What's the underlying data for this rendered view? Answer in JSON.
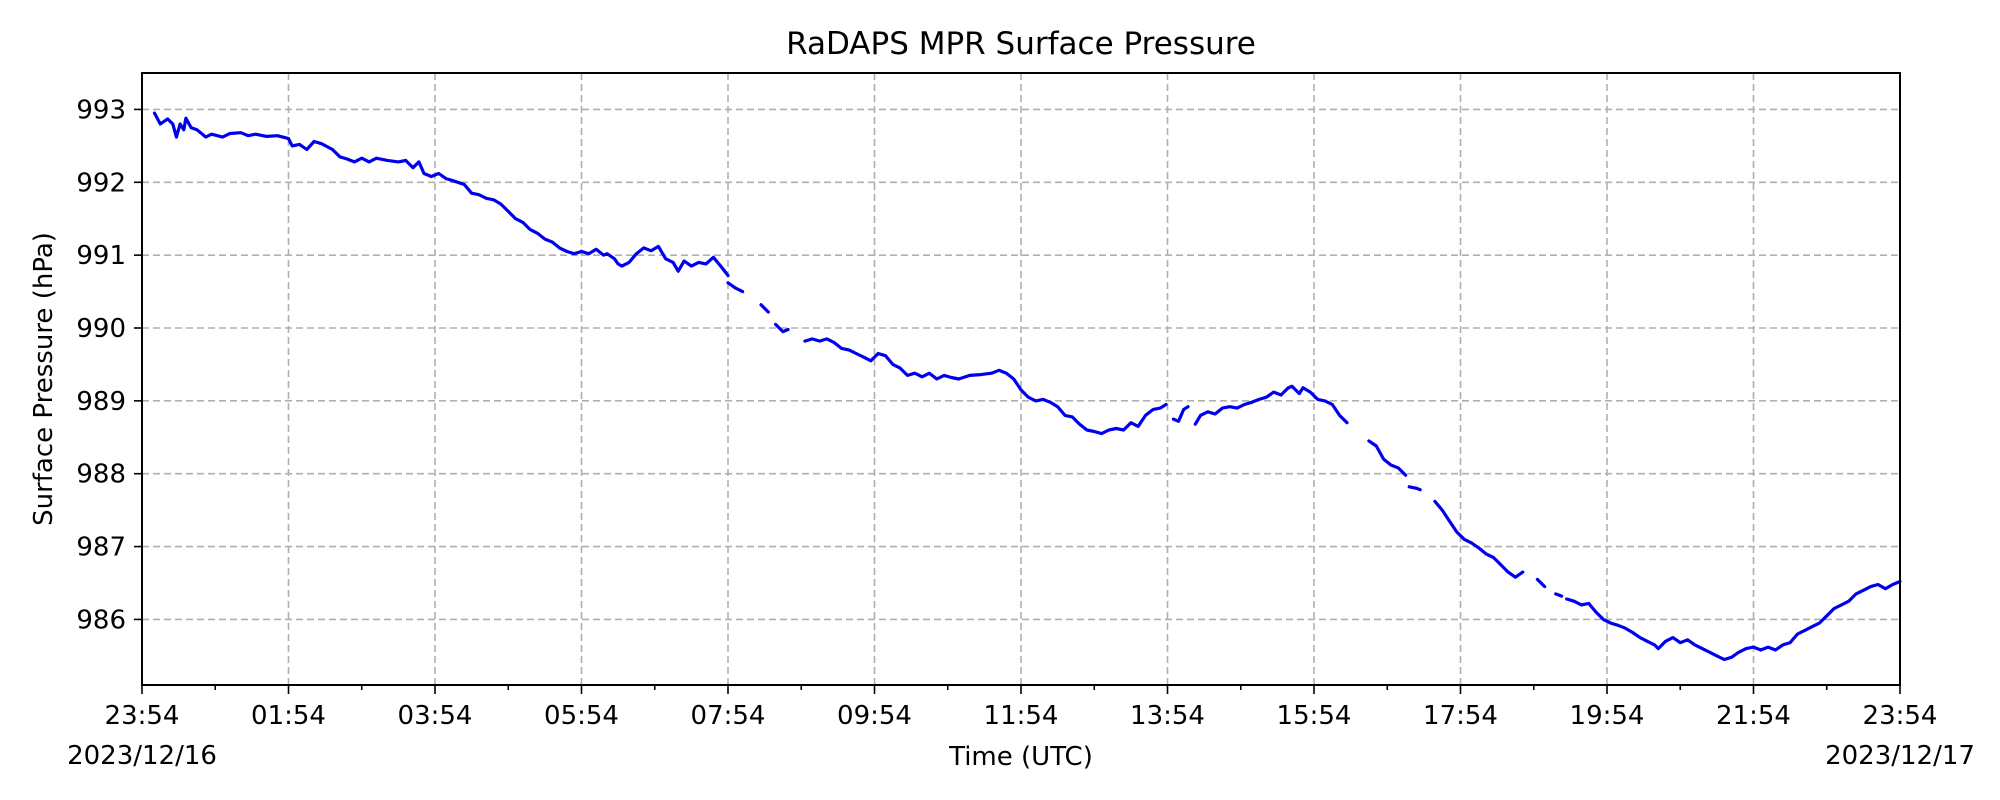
{
  "chart_data": {
    "type": "line",
    "title": "RaDAPS MPR Surface Pressure",
    "xlabel": "Time (UTC)",
    "ylabel": "Surface Pressure (hPa)",
    "x_units": "hours since 2023/12/16 23:54 UTC",
    "xlim": [
      0,
      24
    ],
    "ylim": [
      985.1,
      993.5
    ],
    "x_ticks": [
      {
        "x": 0,
        "label": "23:54"
      },
      {
        "x": 2,
        "label": "01:54"
      },
      {
        "x": 4,
        "label": "03:54"
      },
      {
        "x": 6,
        "label": "05:54"
      },
      {
        "x": 8,
        "label": "07:54"
      },
      {
        "x": 10,
        "label": "09:54"
      },
      {
        "x": 12,
        "label": "11:54"
      },
      {
        "x": 14,
        "label": "13:54"
      },
      {
        "x": 16,
        "label": "15:54"
      },
      {
        "x": 18,
        "label": "17:54"
      },
      {
        "x": 20,
        "label": "19:54"
      },
      {
        "x": 22,
        "label": "21:54"
      },
      {
        "x": 24,
        "label": "23:54"
      }
    ],
    "x_minor_ticks": [
      1,
      3,
      5,
      7,
      9,
      11,
      13,
      15,
      17,
      19,
      21,
      23
    ],
    "date_labels": [
      {
        "x": 0,
        "label": "2023/12/16"
      },
      {
        "x": 24,
        "label": "2023/12/17"
      }
    ],
    "y_ticks": [
      986,
      987,
      988,
      989,
      990,
      991,
      992,
      993
    ],
    "grid": true,
    "color": "#0000ee",
    "series": [
      {
        "segments": [
          [
            [
              0.17,
              992.95
            ],
            [
              0.25,
              992.8
            ],
            [
              0.35,
              992.87
            ],
            [
              0.42,
              992.8
            ],
            [
              0.47,
              992.62
            ],
            [
              0.52,
              992.8
            ],
            [
              0.57,
              992.72
            ],
            [
              0.6,
              992.88
            ],
            [
              0.67,
              992.75
            ],
            [
              0.75,
              992.72
            ],
            [
              0.8,
              992.68
            ],
            [
              0.87,
              992.62
            ],
            [
              0.95,
              992.66
            ],
            [
              1.1,
              992.62
            ],
            [
              1.2,
              992.67
            ],
            [
              1.35,
              992.68
            ],
            [
              1.45,
              992.64
            ],
            [
              1.55,
              992.66
            ],
            [
              1.7,
              992.63
            ],
            [
              1.85,
              992.64
            ],
            [
              2.0,
              992.6
            ],
            [
              2.05,
              992.5
            ],
            [
              2.15,
              992.52
            ],
            [
              2.25,
              992.45
            ],
            [
              2.35,
              992.56
            ],
            [
              2.45,
              992.53
            ],
            [
              2.6,
              992.45
            ],
            [
              2.7,
              992.35
            ],
            [
              2.8,
              992.32
            ],
            [
              2.9,
              992.28
            ],
            [
              3.0,
              992.33
            ],
            [
              3.1,
              992.28
            ],
            [
              3.2,
              992.33
            ],
            [
              3.35,
              992.3
            ],
            [
              3.5,
              992.28
            ],
            [
              3.6,
              992.3
            ],
            [
              3.7,
              992.2
            ],
            [
              3.78,
              992.28
            ],
            [
              3.85,
              992.12
            ],
            [
              3.95,
              992.08
            ],
            [
              4.05,
              992.12
            ],
            [
              4.15,
              992.05
            ],
            [
              4.25,
              992.02
            ],
            [
              4.4,
              991.97
            ],
            [
              4.5,
              991.85
            ],
            [
              4.6,
              991.83
            ],
            [
              4.7,
              991.78
            ],
            [
              4.8,
              991.76
            ],
            [
              4.9,
              991.7
            ],
            [
              5.0,
              991.6
            ],
            [
              5.1,
              991.5
            ],
            [
              5.2,
              991.45
            ],
            [
              5.3,
              991.35
            ],
            [
              5.4,
              991.3
            ],
            [
              5.5,
              991.22
            ],
            [
              5.6,
              991.18
            ],
            [
              5.7,
              991.1
            ],
            [
              5.8,
              991.05
            ],
            [
              5.9,
              991.02
            ],
            [
              6.0,
              991.05
            ],
            [
              6.1,
              991.02
            ],
            [
              6.2,
              991.08
            ],
            [
              6.3,
              991.0
            ],
            [
              6.35,
              991.02
            ],
            [
              6.45,
              990.95
            ],
            [
              6.5,
              990.88
            ],
            [
              6.55,
              990.85
            ],
            [
              6.65,
              990.9
            ],
            [
              6.75,
              991.02
            ],
            [
              6.85,
              991.1
            ],
            [
              6.95,
              991.06
            ],
            [
              7.05,
              991.12
            ],
            [
              7.15,
              990.95
            ],
            [
              7.25,
              990.9
            ],
            [
              7.32,
              990.78
            ],
            [
              7.4,
              990.92
            ],
            [
              7.5,
              990.85
            ],
            [
              7.6,
              990.9
            ],
            [
              7.7,
              990.88
            ],
            [
              7.8,
              990.97
            ],
            [
              7.9,
              990.85
            ],
            [
              8.0,
              990.72
            ]
          ],
          [
            [
              8.0,
              990.62
            ],
            [
              8.1,
              990.55
            ],
            [
              8.2,
              990.5
            ]
          ],
          [
            [
              8.45,
              990.32
            ],
            [
              8.55,
              990.22
            ]
          ],
          [
            [
              8.65,
              990.05
            ],
            [
              8.75,
              989.95
            ],
            [
              8.82,
              989.98
            ]
          ],
          [
            [
              9.05,
              989.82
            ],
            [
              9.15,
              989.85
            ],
            [
              9.25,
              989.82
            ],
            [
              9.35,
              989.85
            ],
            [
              9.45,
              989.8
            ],
            [
              9.55,
              989.72
            ],
            [
              9.65,
              989.7
            ],
            [
              9.75,
              989.65
            ],
            [
              9.85,
              989.6
            ],
            [
              9.95,
              989.55
            ],
            [
              10.05,
              989.65
            ],
            [
              10.15,
              989.62
            ],
            [
              10.25,
              989.5
            ],
            [
              10.35,
              989.45
            ],
            [
              10.45,
              989.35
            ],
            [
              10.55,
              989.38
            ],
            [
              10.65,
              989.33
            ],
            [
              10.75,
              989.38
            ],
            [
              10.85,
              989.3
            ],
            [
              10.95,
              989.35
            ],
            [
              11.05,
              989.32
            ],
            [
              11.15,
              989.3
            ],
            [
              11.3,
              989.35
            ],
            [
              11.45,
              989.36
            ],
            [
              11.6,
              989.38
            ],
            [
              11.7,
              989.42
            ],
            [
              11.8,
              989.38
            ],
            [
              11.9,
              989.3
            ],
            [
              12.0,
              989.15
            ],
            [
              12.1,
              989.05
            ],
            [
              12.2,
              989.0
            ],
            [
              12.3,
              989.02
            ],
            [
              12.4,
              988.98
            ],
            [
              12.5,
              988.92
            ],
            [
              12.6,
              988.8
            ],
            [
              12.7,
              988.78
            ],
            [
              12.8,
              988.68
            ],
            [
              12.9,
              988.6
            ],
            [
              13.0,
              988.58
            ],
            [
              13.1,
              988.55
            ],
            [
              13.2,
              988.6
            ],
            [
              13.3,
              988.62
            ],
            [
              13.4,
              988.6
            ],
            [
              13.5,
              988.7
            ],
            [
              13.6,
              988.65
            ],
            [
              13.7,
              988.8
            ],
            [
              13.8,
              988.88
            ],
            [
              13.9,
              988.9
            ],
            [
              13.98,
              988.95
            ]
          ],
          [
            [
              14.08,
              988.75
            ],
            [
              14.15,
              988.72
            ],
            [
              14.22,
              988.88
            ],
            [
              14.28,
              988.92
            ]
          ],
          [
            [
              14.38,
              988.68
            ],
            [
              14.45,
              988.8
            ],
            [
              14.55,
              988.85
            ],
            [
              14.65,
              988.82
            ],
            [
              14.75,
              988.9
            ],
            [
              14.85,
              988.92
            ],
            [
              14.95,
              988.9
            ],
            [
              15.05,
              988.95
            ],
            [
              15.15,
              988.98
            ],
            [
              15.25,
              989.02
            ],
            [
              15.35,
              989.05
            ],
            [
              15.45,
              989.12
            ],
            [
              15.55,
              989.08
            ],
            [
              15.65,
              989.18
            ],
            [
              15.7,
              989.2
            ],
            [
              15.8,
              989.1
            ],
            [
              15.85,
              989.18
            ],
            [
              15.95,
              989.12
            ],
            [
              16.05,
              989.02
            ],
            [
              16.15,
              989.0
            ],
            [
              16.25,
              988.95
            ],
            [
              16.35,
              988.8
            ],
            [
              16.45,
              988.7
            ]
          ],
          [
            [
              16.75,
              988.45
            ],
            [
              16.85,
              988.38
            ],
            [
              16.95,
              988.2
            ],
            [
              17.05,
              988.12
            ],
            [
              17.15,
              988.08
            ],
            [
              17.25,
              987.98
            ]
          ],
          [
            [
              17.3,
              987.82
            ],
            [
              17.4,
              987.8
            ],
            [
              17.45,
              987.78
            ]
          ],
          [
            [
              17.65,
              987.62
            ],
            [
              17.75,
              987.5
            ],
            [
              17.85,
              987.35
            ],
            [
              17.95,
              987.2
            ],
            [
              18.05,
              987.1
            ],
            [
              18.15,
              987.05
            ],
            [
              18.25,
              986.98
            ],
            [
              18.35,
              986.9
            ],
            [
              18.45,
              986.85
            ],
            [
              18.55,
              986.75
            ],
            [
              18.65,
              986.65
            ],
            [
              18.75,
              986.58
            ],
            [
              18.85,
              986.65
            ]
          ],
          [
            [
              19.05,
              986.55
            ],
            [
              19.15,
              986.45
            ]
          ],
          [
            [
              19.3,
              986.35
            ],
            [
              19.38,
              986.32
            ]
          ],
          [
            [
              19.45,
              986.28
            ],
            [
              19.55,
              986.25
            ],
            [
              19.65,
              986.2
            ],
            [
              19.75,
              986.22
            ],
            [
              19.85,
              986.1
            ],
            [
              19.95,
              986.0
            ],
            [
              20.05,
              985.95
            ],
            [
              20.15,
              985.92
            ],
            [
              20.25,
              985.88
            ],
            [
              20.35,
              985.82
            ],
            [
              20.45,
              985.75
            ],
            [
              20.55,
              985.7
            ],
            [
              20.65,
              985.65
            ],
            [
              20.7,
              985.6
            ],
            [
              20.8,
              985.7
            ],
            [
              20.9,
              985.75
            ],
            [
              21.0,
              985.68
            ],
            [
              21.1,
              985.72
            ],
            [
              21.2,
              985.65
            ],
            [
              21.3,
              985.6
            ],
            [
              21.4,
              985.55
            ],
            [
              21.5,
              985.5
            ],
            [
              21.6,
              985.45
            ],
            [
              21.7,
              985.48
            ],
            [
              21.8,
              985.55
            ],
            [
              21.9,
              985.6
            ],
            [
              22.0,
              985.62
            ],
            [
              22.1,
              985.58
            ],
            [
              22.2,
              985.62
            ],
            [
              22.3,
              985.58
            ],
            [
              22.4,
              985.65
            ],
            [
              22.5,
              985.68
            ],
            [
              22.6,
              985.8
            ],
            [
              22.7,
              985.85
            ],
            [
              22.8,
              985.9
            ],
            [
              22.9,
              985.95
            ],
            [
              23.0,
              986.05
            ],
            [
              23.1,
              986.15
            ],
            [
              23.2,
              986.2
            ],
            [
              23.3,
              986.25
            ],
            [
              23.4,
              986.35
            ],
            [
              23.5,
              986.4
            ],
            [
              23.6,
              986.45
            ],
            [
              23.7,
              986.48
            ],
            [
              23.8,
              986.42
            ],
            [
              23.9,
              986.48
            ],
            [
              24.0,
              986.52
            ]
          ]
        ]
      }
    ]
  }
}
